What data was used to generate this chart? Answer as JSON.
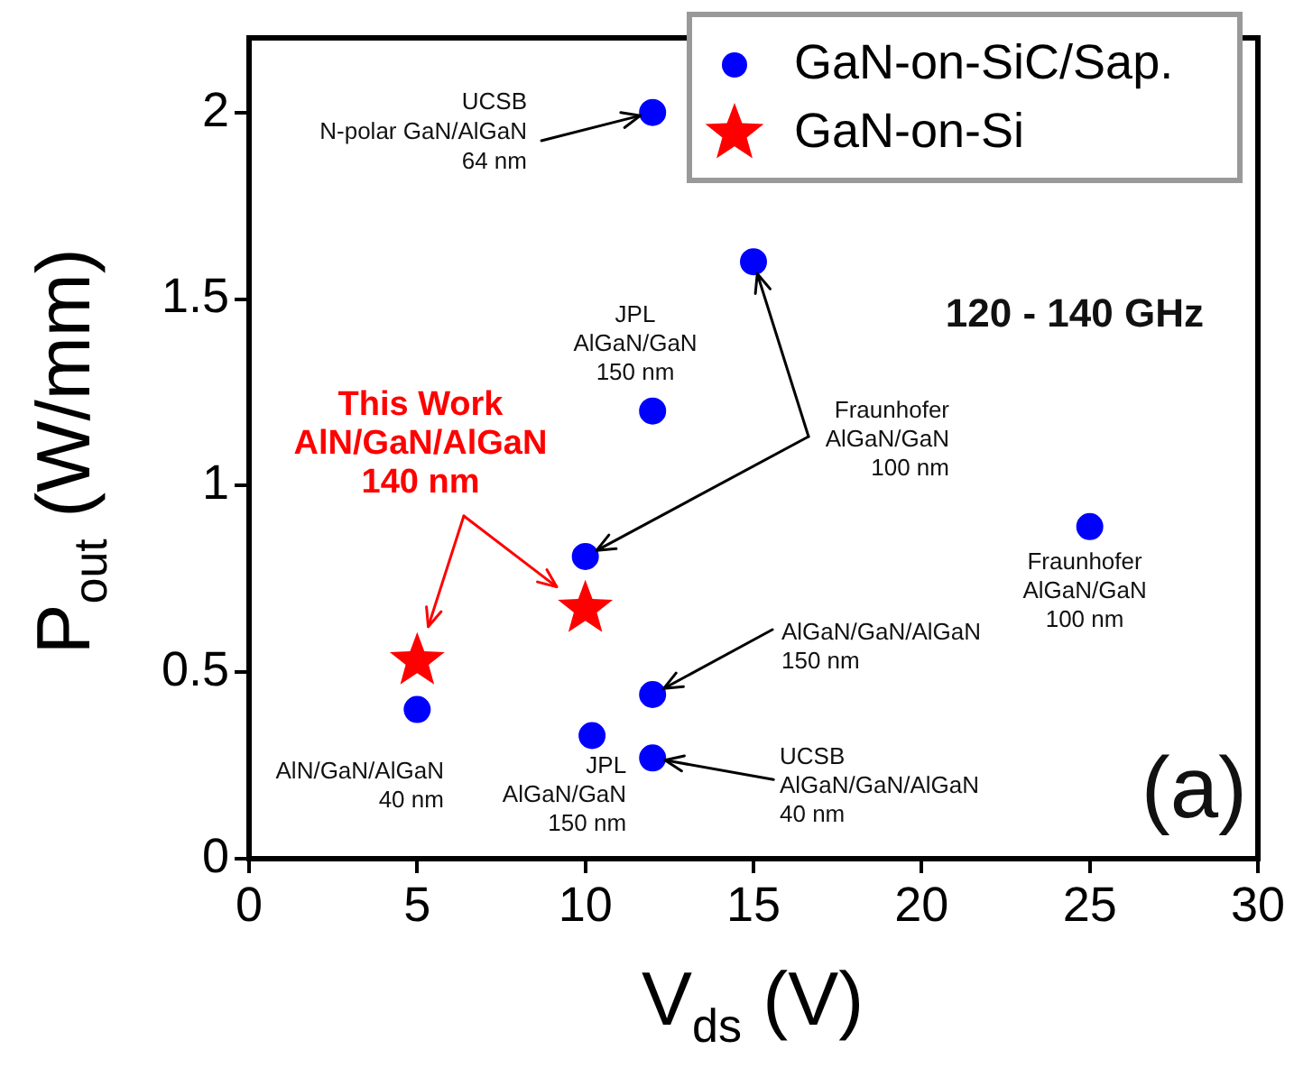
{
  "chart_data": {
    "type": "scatter",
    "xlabel": "V$_{ds}$ (V)",
    "ylabel": "P$_{out}$ (W/mm)",
    "xlim": [
      0,
      30
    ],
    "xticks": [
      0,
      5,
      10,
      15,
      20,
      25,
      30
    ],
    "ylim": [
      0,
      2.2
    ],
    "yticks": [
      0,
      0.5,
      1,
      1.5,
      2
    ],
    "grid": false,
    "legend": "top right",
    "series": [
      {
        "name": "GaN-on-SiC/Sap.",
        "color": "#0000ff",
        "marker": "circle",
        "x": [
          12,
          15,
          12,
          10,
          25,
          12,
          5,
          10.2,
          12
        ],
        "values": [
          2.0,
          1.6,
          1.2,
          0.81,
          0.89,
          0.44,
          0.4,
          0.33,
          0.27
        ]
      },
      {
        "name": "GaN-on-Si",
        "color": "#ff0000",
        "marker": "star",
        "x": [
          5,
          10
        ],
        "values": [
          0.53,
          0.67
        ]
      }
    ],
    "annotations": [
      {
        "text": "UCSB\nN-polar GaN/AlGaN\n64 nm",
        "x": 12,
        "y": 2.0
      },
      {
        "text": "JPL\nAlGaN/GaN\n150 nm",
        "x": 12,
        "y": 1.2
      },
      {
        "text": "Fraunhofer\nAlGaN/GaN\n100 nm",
        "x": 15,
        "y": 1.6
      },
      {
        "text": "Fraunhofer\nAlGaN/GaN\n100 nm",
        "x": 25,
        "y": 0.89
      },
      {
        "text": "AlGaN/GaN/AlGaN\n150 nm",
        "x": 12,
        "y": 0.44
      },
      {
        "text": "UCSB\nAlGaN/GaN/AlGaN\n40 nm",
        "x": 12,
        "y": 0.27
      },
      {
        "text": "AlN/GaN/AlGaN\n40 nm",
        "x": 5,
        "y": 0.4
      },
      {
        "text": "JPL\nAlGaN/GaN\n150 nm",
        "x": 10.2,
        "y": 0.33
      },
      "120 - 140 GHz",
      "(a)",
      "This Work\nAlN/GaN/AlGaN\n140 nm"
    ]
  }
}
